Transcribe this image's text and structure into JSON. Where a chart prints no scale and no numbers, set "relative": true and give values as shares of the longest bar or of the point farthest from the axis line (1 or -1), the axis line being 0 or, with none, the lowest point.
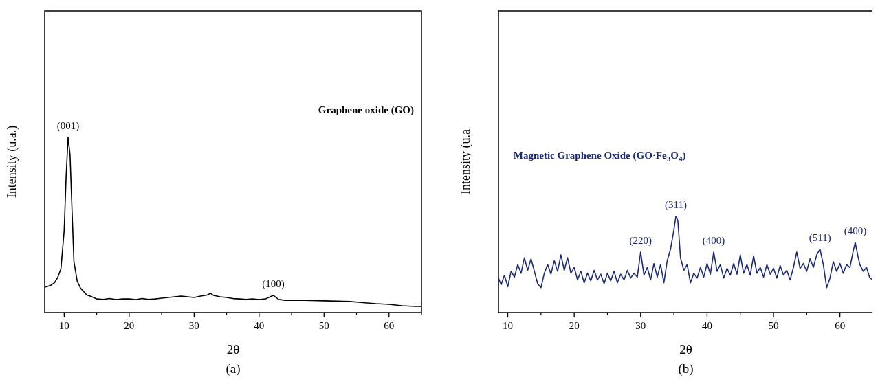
{
  "chart_data": [
    {
      "type": "line",
      "title": "(a)",
      "xlabel": "2θ",
      "ylabel": "Intensity (u.a.)",
      "relative": true,
      "xlim": [
        7,
        65
      ],
      "xticks": [
        10,
        20,
        30,
        40,
        50,
        60
      ],
      "grid": false,
      "marker": "none",
      "line_style": "solid",
      "annotations": [
        "Graphene oxide (GO)",
        {
          "text": "(001)",
          "x": 10.6,
          "y": 1
        },
        {
          "text": "(100)",
          "x": 42.2,
          "y": 0.098
        }
      ],
      "series": [
        {
          "color": "#000000",
          "x": [
            7,
            7.5,
            8,
            8.5,
            9,
            9.5,
            10,
            10.3,
            10.6,
            10.9,
            11.2,
            11.5,
            12,
            12.5,
            13,
            13.5,
            14,
            15,
            16,
            17,
            18,
            19,
            20,
            21,
            22,
            23,
            24,
            25,
            26,
            27,
            28,
            29,
            30,
            31,
            32,
            32.5,
            33,
            34,
            35,
            36,
            37,
            38,
            39,
            40,
            41,
            42.2,
            43,
            44,
            46,
            48,
            50,
            52,
            54,
            56,
            58,
            60,
            62,
            64,
            65
          ],
          "values": [
            0.145,
            0.15,
            0.157,
            0.17,
            0.2,
            0.25,
            0.47,
            0.78,
            1,
            0.9,
            0.59,
            0.29,
            0.18,
            0.14,
            0.12,
            0.1,
            0.094,
            0.078,
            0.075,
            0.08,
            0.074,
            0.078,
            0.078,
            0.074,
            0.08,
            0.075,
            0.078,
            0.082,
            0.086,
            0.09,
            0.094,
            0.09,
            0.086,
            0.094,
            0.1,
            0.11,
            0.098,
            0.09,
            0.086,
            0.08,
            0.078,
            0.075,
            0.078,
            0.074,
            0.078,
            0.098,
            0.075,
            0.07,
            0.071,
            0.069,
            0.067,
            0.065,
            0.063,
            0.057,
            0.051,
            0.047,
            0.039,
            0.035,
            0.035
          ]
        }
      ]
    },
    {
      "type": "line",
      "title": "(b)",
      "xlabel": "2θ",
      "ylabel": "Intensity (u.a",
      "relative": true,
      "xlim": [
        8.6,
        65
      ],
      "xticks": [
        10,
        20,
        30,
        40,
        50,
        60
      ],
      "grid": false,
      "marker": "none",
      "line_style": "solid",
      "annotations": [
        "Magnetic Graphene Oxide (GO·Fe$_{3}$O$_{4}$)",
        {
          "text": "(220)",
          "x": 30,
          "y": 0.63
        },
        {
          "text": "(311)",
          "x": 35.3,
          "y": 1
        },
        {
          "text": "(400)",
          "x": 41,
          "y": 0.63
        },
        {
          "text": "(511)",
          "x": 57,
          "y": 0.66
        },
        {
          "text": "(400)",
          "x": 62.3,
          "y": 0.73
        }
      ],
      "series": [
        {
          "color": "#1b2a78",
          "x": [
            8.6,
            9,
            9.5,
            10,
            10.5,
            11,
            11.5,
            12,
            12.5,
            13,
            13.5,
            14,
            14.5,
            15,
            15.5,
            16,
            16.5,
            17,
            17.5,
            18,
            18.5,
            19,
            19.5,
            20,
            20.5,
            21,
            21.5,
            22,
            22.5,
            23,
            23.5,
            24,
            24.5,
            25,
            25.5,
            26,
            26.5,
            27,
            27.5,
            28,
            28.5,
            29,
            29.5,
            30,
            30.5,
            31,
            31.5,
            32,
            32.5,
            33,
            33.5,
            34,
            34.5,
            35,
            35.3,
            35.6,
            36,
            36.5,
            37,
            37.5,
            38,
            38.5,
            39,
            39.5,
            40,
            40.5,
            41,
            41.5,
            42,
            42.5,
            43,
            43.5,
            44,
            44.5,
            45,
            45.5,
            46,
            46.5,
            47,
            47.5,
            48,
            48.5,
            49,
            49.5,
            50,
            50.5,
            51,
            51.5,
            52,
            52.5,
            53,
            53.5,
            54,
            54.5,
            55,
            55.5,
            56,
            56.5,
            57,
            57.5,
            58,
            58.5,
            59,
            59.5,
            60,
            60.5,
            61,
            61.5,
            62,
            62.3,
            62.7,
            63,
            63.5,
            64,
            64.5,
            65
          ],
          "values": [
            0.36,
            0.29,
            0.39,
            0.27,
            0.43,
            0.37,
            0.5,
            0.41,
            0.57,
            0.44,
            0.56,
            0.43,
            0.3,
            0.26,
            0.41,
            0.5,
            0.4,
            0.54,
            0.43,
            0.6,
            0.44,
            0.57,
            0.41,
            0.47,
            0.34,
            0.43,
            0.31,
            0.41,
            0.33,
            0.44,
            0.34,
            0.4,
            0.3,
            0.41,
            0.33,
            0.43,
            0.31,
            0.4,
            0.34,
            0.44,
            0.36,
            0.41,
            0.37,
            0.63,
            0.39,
            0.47,
            0.34,
            0.51,
            0.37,
            0.5,
            0.31,
            0.54,
            0.66,
            0.86,
            1,
            0.96,
            0.57,
            0.44,
            0.5,
            0.31,
            0.41,
            0.36,
            0.47,
            0.37,
            0.51,
            0.4,
            0.63,
            0.43,
            0.5,
            0.36,
            0.46,
            0.39,
            0.51,
            0.4,
            0.6,
            0.41,
            0.5,
            0.39,
            0.59,
            0.41,
            0.47,
            0.37,
            0.5,
            0.4,
            0.46,
            0.36,
            0.49,
            0.39,
            0.44,
            0.34,
            0.47,
            0.63,
            0.46,
            0.51,
            0.43,
            0.56,
            0.47,
            0.6,
            0.66,
            0.5,
            0.26,
            0.36,
            0.53,
            0.43,
            0.51,
            0.41,
            0.5,
            0.47,
            0.64,
            0.73,
            0.59,
            0.5,
            0.43,
            0.47,
            0.36,
            0.34
          ]
        }
      ]
    }
  ]
}
